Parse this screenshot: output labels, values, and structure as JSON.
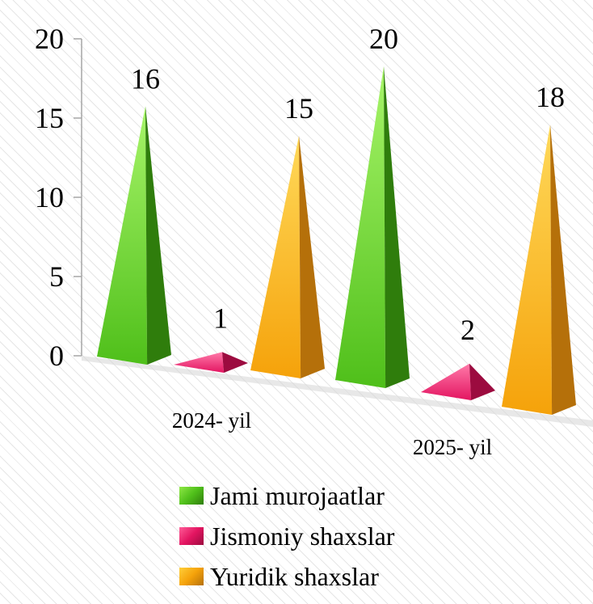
{
  "chart_data": {
    "type": "bar",
    "subtype": "3d-pyramid",
    "categories": [
      "2024- yil",
      "2025- yil"
    ],
    "series": [
      {
        "name": "Jami murojaatlar",
        "values": [
          16,
          20
        ],
        "color": "#4fbf1a"
      },
      {
        "name": "Jismoniy shaxslar",
        "values": [
          1,
          2
        ],
        "color": "#e31561"
      },
      {
        "name": "Yuridik shaxslar",
        "values": [
          15,
          18
        ],
        "color": "#f5a20a"
      }
    ],
    "y_ticks": [
      "0",
      "5",
      "10",
      "15",
      "20"
    ],
    "ylim": [
      0,
      20
    ],
    "data_labels": true,
    "grid": false,
    "legend": "bottom"
  }
}
